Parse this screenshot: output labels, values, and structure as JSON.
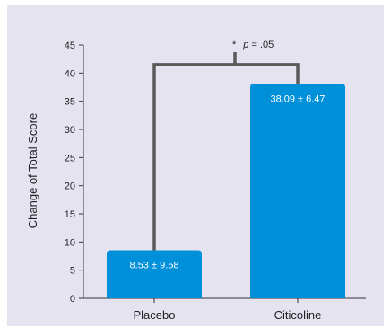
{
  "chart_data": {
    "type": "bar",
    "ylabel": "Change of Total Score",
    "xlabel": "",
    "title": "",
    "ylim": [
      0,
      45
    ],
    "yticks": [
      0,
      5,
      10,
      15,
      20,
      25,
      30,
      35,
      40,
      45
    ],
    "categories": [
      "Placebo",
      "Citicoline"
    ],
    "values": [
      8.53,
      38.09
    ],
    "data_labels": [
      "8.53 ± 9.58",
      "38.09 ± 6.47"
    ],
    "significance": {
      "star": "*",
      "p_symbol": "p",
      "p_text": " = .05",
      "bracket_level": 41.5
    },
    "bar_color": "#0090da",
    "bracket_color": "#5a5a5a",
    "background_color": "#e6e3f1",
    "grid": false
  }
}
